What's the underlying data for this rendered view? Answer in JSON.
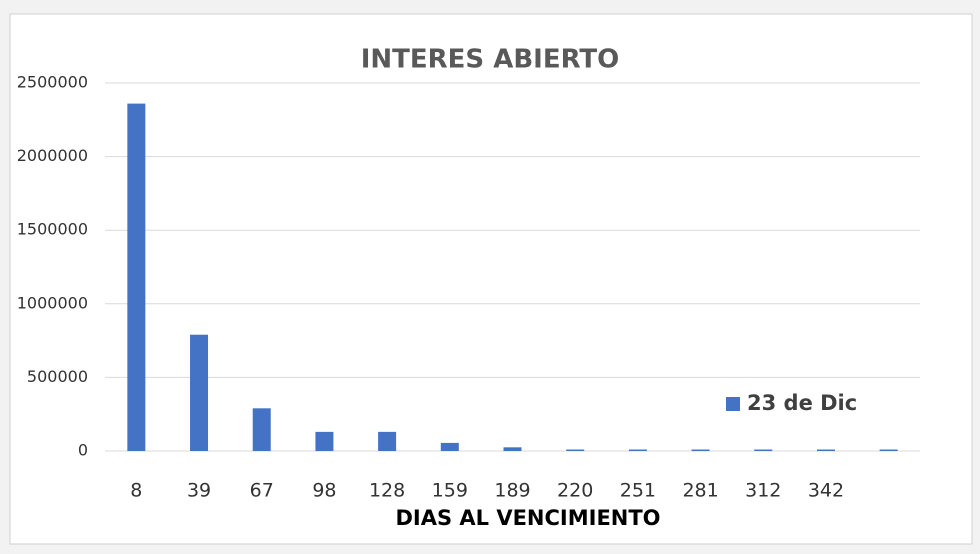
{
  "chart_data": {
    "type": "bar",
    "title": "INTERES ABIERTO",
    "x_label": "DIAS AL VENCIMIENTO",
    "categories": [
      8,
      39,
      67,
      98,
      128,
      159,
      189,
      220,
      251,
      281,
      312,
      342,
      null
    ],
    "series": [
      {
        "name": "23 de Dic",
        "color": "#4472c4",
        "values": [
          2360000,
          790000,
          290000,
          130000,
          130000,
          55000,
          25000,
          10000,
          10000,
          10000,
          10000,
          10000,
          10000
        ]
      }
    ],
    "ylim": [
      0,
      2500000
    ],
    "yticks": [
      0,
      500000,
      1000000,
      1500000,
      2000000,
      2500000
    ],
    "grid": true,
    "legend": "right"
  }
}
